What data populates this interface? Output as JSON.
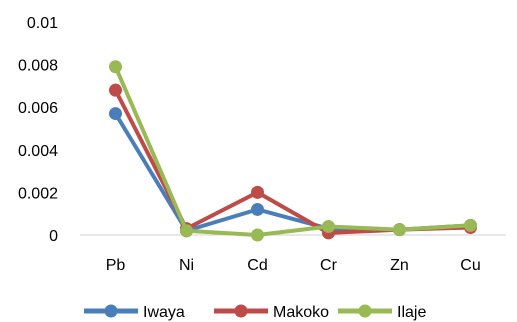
{
  "chart_data": {
    "type": "line",
    "categories": [
      "Pb",
      "Ni",
      "Cd",
      "Cr",
      "Zn",
      "Cu"
    ],
    "ylim": [
      0,
      0.01
    ],
    "yticks": [
      "0",
      "0.002",
      "0.004",
      "0.006",
      "0.008",
      "0.01"
    ],
    "grid": false,
    "legend_position": "bottom",
    "title": "",
    "xlabel": "",
    "ylabel": "",
    "series": [
      {
        "name": "Iwaya",
        "color": "#4a7ebb",
        "values": [
          0.0057,
          0.0002,
          0.0012,
          0.0003,
          0.00025,
          0.00045
        ]
      },
      {
        "name": "Makoko",
        "color": "#be4b48",
        "values": [
          0.0068,
          0.0003,
          0.002,
          0.0001,
          0.00025,
          0.00035
        ]
      },
      {
        "name": "Ilaje",
        "color": "#98b954",
        "values": [
          0.0079,
          0.0002,
          0.0,
          0.0004,
          0.00025,
          0.00045
        ]
      }
    ]
  }
}
